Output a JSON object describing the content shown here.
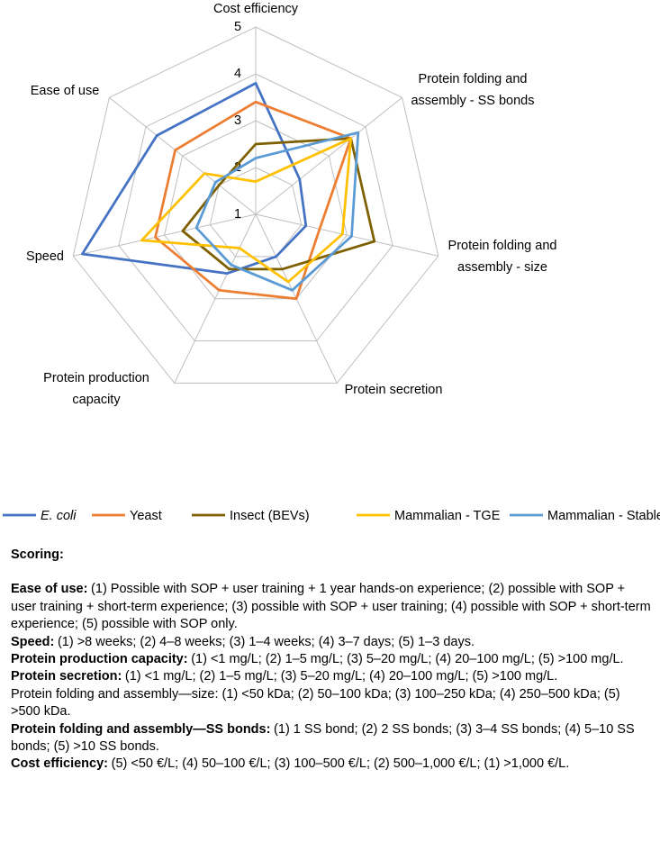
{
  "chart_data": {
    "type": "radar",
    "categories": [
      "Cost efficiency",
      "Protein folding and assembly - SS bonds",
      "Protein folding and assembly - size",
      "Protein secretion",
      "Protein production capacity",
      "Speed",
      "Ease of use"
    ],
    "series": [
      {
        "name": "E. coli",
        "color": "#4472c4",
        "values": [
          3.8,
          2.2,
          2.1,
          2.0,
          2.4,
          4.8,
          3.7
        ]
      },
      {
        "name": "Yeast",
        "color": "#ed7d31",
        "values": [
          3.4,
          3.6,
          2.4,
          3.0,
          2.8,
          3.2,
          3.2
        ]
      },
      {
        "name": "Insect (BEVs)",
        "color": "#7f6000",
        "values": [
          2.5,
          3.6,
          3.6,
          2.3,
          2.3,
          2.6,
          2.0
        ]
      },
      {
        "name": "Mammalian - TGE",
        "color": "#ffc000",
        "values": [
          1.7,
          3.6,
          2.9,
          2.6,
          1.8,
          3.5,
          2.4
        ]
      },
      {
        "name": "Mammalian - Stable",
        "color": "#5b9bd5",
        "values": [
          2.2,
          3.8,
          3.1,
          2.8,
          2.2,
          2.3,
          2.1
        ]
      }
    ],
    "ylim": [
      1,
      5
    ],
    "yticks": [
      1,
      2,
      3,
      4,
      5
    ],
    "grid": true
  },
  "scoring": {
    "title": "Scoring:",
    "items": [
      {
        "label": "Ease of use:",
        "text": "(1) Possible with SOP + user training + 1 year hands-on experience; (2) possible with SOP + user training + short-term experience; (3) possible with SOP + user training; (4) possible with SOP + short-term experience; (5) possible with SOP only."
      },
      {
        "label": "Speed:",
        "text": "(1) >8 weeks; (2) 4–8 weeks; (3) 1–4 weeks; (4) 3–7 days; (5) 1–3 days."
      },
      {
        "label": "Protein production capacity:",
        "text": "(1) <1 mg/L; (2) 1–5 mg/L; (3) 5–20 mg/L; (4) 20–100 mg/L; (5) >100 mg/L."
      },
      {
        "label": "Protein secretion:",
        "text": "(1) <1 mg/L; (2) 1–5 mg/L; (3) 5–20 mg/L; (4) 20–100 mg/L; (5) >100 mg/L."
      },
      {
        "text": "Protein folding and assembly—size: (1) <50 kDa; (2) 50–100 kDa; (3) 100–250 kDa; (4) 250–500 kDa; (5) >500 kDa."
      },
      {
        "label": "Protein folding and assembly—SS bonds:",
        "text": "(1) 1 SS bond; (2) 2 SS bonds; (3) 3–4 SS bonds; (4) 5–10 SS bonds; (5) >10 SS bonds."
      },
      {
        "label": "Cost efficiency:",
        "text": "(5) <50 €/L; (4) 50–100 €/L; (3) 100–500 €/L; (2) 500–1,000 €/L; (1) >1,000 €/L."
      }
    ]
  }
}
